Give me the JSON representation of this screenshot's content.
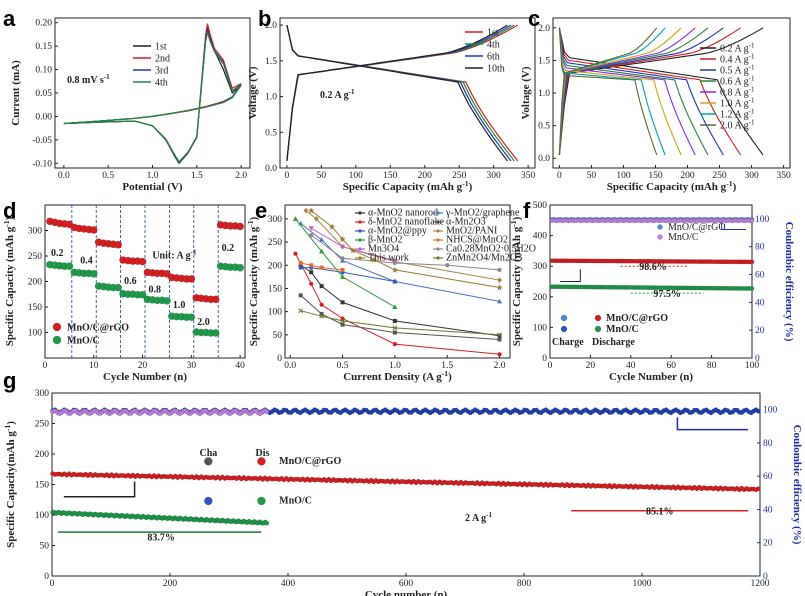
{
  "chart_data": [
    {
      "panel": "a",
      "type": "line",
      "xlabel": "Potential (V)",
      "ylabel": "Current (mA)",
      "xlim": [
        -0.1,
        2.1
      ],
      "ylim": [
        -0.11,
        0.21
      ],
      "xticks": [
        "0.0",
        "0.5",
        "1.0",
        "1.5",
        "2.0"
      ],
      "yticks": [
        "-0.10",
        "-0.05",
        "0.00",
        "0.05",
        "0.10",
        "0.15",
        "0.20"
      ],
      "annotation": "0.8 mV s-1",
      "series": [
        {
          "name": "1st",
          "color": "#222222",
          "x": [
            0.0,
            0.4,
            0.8,
            1.0,
            1.15,
            1.25,
            1.3,
            1.4,
            1.5,
            1.6,
            1.62,
            1.65,
            1.7,
            1.8,
            1.9,
            2.0,
            1.9,
            1.8,
            1.6,
            1.4,
            1.2,
            1.0,
            0.8,
            0.4,
            0.0
          ],
          "y": [
            -0.015,
            -0.012,
            -0.01,
            -0.02,
            -0.05,
            -0.085,
            -0.1,
            -0.078,
            -0.045,
            0.17,
            0.19,
            0.17,
            0.14,
            0.1,
            0.05,
            0.068,
            0.04,
            0.03,
            0.02,
            0.012,
            0.006,
            0.0,
            -0.004,
            -0.01,
            -0.015
          ]
        },
        {
          "name": "2nd",
          "color": "#d42020",
          "x": [
            0.0,
            0.4,
            0.8,
            1.0,
            1.15,
            1.25,
            1.3,
            1.4,
            1.5,
            1.6,
            1.62,
            1.65,
            1.7,
            1.8,
            1.9,
            2.0,
            1.9,
            1.8,
            1.6,
            1.4,
            1.2,
            1.0,
            0.8,
            0.4,
            0.0
          ],
          "y": [
            -0.015,
            -0.012,
            -0.01,
            -0.02,
            -0.048,
            -0.082,
            -0.097,
            -0.076,
            -0.043,
            0.175,
            0.198,
            0.175,
            0.145,
            0.12,
            0.06,
            0.07,
            0.042,
            0.032,
            0.021,
            0.013,
            0.006,
            0.0,
            -0.004,
            -0.01,
            -0.015
          ]
        },
        {
          "name": "3rd",
          "color": "#2233bb",
          "x": [
            0.0,
            0.4,
            0.8,
            1.0,
            1.15,
            1.25,
            1.3,
            1.4,
            1.5,
            1.6,
            1.62,
            1.65,
            1.7,
            1.8,
            1.9,
            2.0,
            1.9,
            1.8,
            1.6,
            1.4,
            1.2,
            1.0,
            0.8,
            0.4,
            0.0
          ],
          "y": [
            -0.015,
            -0.012,
            -0.01,
            -0.02,
            -0.05,
            -0.083,
            -0.098,
            -0.077,
            -0.044,
            0.165,
            0.185,
            0.165,
            0.14,
            0.115,
            0.055,
            0.068,
            0.041,
            0.031,
            0.02,
            0.012,
            0.006,
            0.0,
            -0.004,
            -0.01,
            -0.015
          ]
        },
        {
          "name": "4th",
          "color": "#1f8a3a",
          "x": [
            0.0,
            0.4,
            0.8,
            1.0,
            1.15,
            1.25,
            1.3,
            1.4,
            1.5,
            1.6,
            1.62,
            1.65,
            1.7,
            1.8,
            1.9,
            2.0,
            1.9,
            1.8,
            1.6,
            1.4,
            1.2,
            1.0,
            0.8,
            0.4,
            0.0
          ],
          "y": [
            -0.015,
            -0.012,
            -0.01,
            -0.02,
            -0.049,
            -0.082,
            -0.097,
            -0.076,
            -0.044,
            0.16,
            0.18,
            0.16,
            0.138,
            0.112,
            0.054,
            0.066,
            0.04,
            0.03,
            0.02,
            0.012,
            0.006,
            0.0,
            -0.004,
            -0.01,
            -0.015
          ]
        }
      ]
    },
    {
      "panel": "b",
      "type": "line",
      "xlabel": "Specific Capacity (mAh g-1)",
      "ylabel": "Voltage (V)",
      "xlim": [
        -10,
        360
      ],
      "ylim": [
        0.0,
        2.1
      ],
      "xticks": [
        "0",
        "50",
        "100",
        "150",
        "200",
        "250",
        "300",
        "350"
      ],
      "yticks": [
        "0.0",
        "0.5",
        "1.0",
        "1.5",
        "2.0"
      ],
      "annotation": "0.2 A g-1",
      "series": [
        {
          "name": "1st",
          "color": "#d42020",
          "cap": 335
        },
        {
          "name": "4th",
          "color": "#1f8a3a",
          "cap": 330
        },
        {
          "name": "6th",
          "color": "#2233bb",
          "cap": 325
        },
        {
          "name": "10th",
          "color": "#222222",
          "cap": 320
        }
      ]
    },
    {
      "panel": "c",
      "type": "line",
      "xlabel": "Specific Capacity (mAh g-1)",
      "ylabel": "Voltage (V)",
      "xlim": [
        -10,
        360
      ],
      "ylim": [
        -0.15,
        2.15
      ],
      "xticks": [
        "0",
        "50",
        "100",
        "150",
        "200",
        "250",
        "300",
        "350"
      ],
      "yticks": [
        "0.0",
        "0.5",
        "1.0",
        "1.5",
        "2.0"
      ],
      "series": [
        {
          "name": "0.2 A g-1",
          "color": "#222222",
          "cap": 318
        },
        {
          "name": "0.4 A g-1",
          "color": "#d42020",
          "cap": 283
        },
        {
          "name": "0.5 A g-1",
          "color": "#2233bb",
          "cap": 256
        },
        {
          "name": "0.6 A g-1",
          "color": "#1f8a3a",
          "cap": 232
        },
        {
          "name": "0.8 A g-1",
          "color": "#8a2be2",
          "cap": 212
        },
        {
          "name": "1.0 A g-1",
          "color": "#d4a017",
          "cap": 190
        },
        {
          "name": "1.2 A g-1",
          "color": "#00a0b0",
          "cap": 165
        },
        {
          "name": "2.0 A g-1",
          "color": "#556b2f",
          "cap": 152
        }
      ]
    },
    {
      "panel": "d",
      "type": "scatter",
      "xlabel": "Cycle Number (n)",
      "ylabel": "Specific Capacity (mAh g-1)",
      "xlim": [
        0,
        41
      ],
      "ylim": [
        50,
        350
      ],
      "xticks": [
        "0",
        "10",
        "20",
        "30",
        "40"
      ],
      "yticks": [
        "100",
        "150",
        "200",
        "250",
        "300"
      ],
      "annotation": "Unit: A g-1",
      "rate_labels": [
        "0.2",
        "0.4",
        "0.6",
        "0.8",
        "1.0",
        "2.0",
        "0.2"
      ],
      "series": [
        {
          "name": "MnO/C@rGO",
          "color": "#d42020",
          "values": [
            318,
            316,
            314,
            313,
            312,
            306,
            304,
            303,
            302,
            301,
            277,
            275,
            274,
            273,
            272,
            242,
            241,
            240,
            240,
            239,
            218,
            217,
            216,
            216,
            215,
            208,
            207,
            206,
            205,
            205,
            168,
            167,
            166,
            165,
            165,
            311,
            310,
            309,
            309,
            308
          ]
        },
        {
          "name": "MnO/C",
          "color": "#1f9a4a",
          "values": [
            233,
            232,
            231,
            230,
            230,
            218,
            217,
            216,
            216,
            215,
            191,
            190,
            189,
            188,
            188,
            176,
            175,
            175,
            174,
            174,
            165,
            164,
            163,
            163,
            162,
            132,
            131,
            131,
            130,
            130,
            101,
            100,
            100,
            99,
            99,
            230,
            229,
            228,
            228,
            227
          ]
        }
      ]
    },
    {
      "panel": "e",
      "type": "line",
      "xlabel": "Current Density (A g-1)",
      "ylabel": "Specific Capacity (mAh g-1)",
      "xlim": [
        -0.05,
        2.1
      ],
      "ylim": [
        0,
        330
      ],
      "xticks": [
        "0.0",
        "0.5",
        "1.0",
        "1.5",
        "2.0"
      ],
      "yticks": [
        "0",
        "50",
        "100",
        "150",
        "200",
        "250",
        "300"
      ],
      "series": [
        {
          "name": "α-MnO2 nanorod",
          "color": "#333333",
          "marker": "s",
          "x": [
            0.1,
            0.2,
            0.3,
            0.5,
            1.0,
            2.0
          ],
          "y": [
            200,
            185,
            155,
            120,
            80,
            48
          ]
        },
        {
          "name": "γ-MnO2/graphene",
          "color": "#4a76c0",
          "marker": "^",
          "x": [
            0.1,
            0.3,
            0.5,
            1.0,
            2.0
          ],
          "y": [
            290,
            255,
            210,
            165,
            122
          ]
        },
        {
          "name": "δ-MnO2 nanoflake",
          "color": "#d42020",
          "marker": "o",
          "x": [
            0.05,
            0.2,
            0.3,
            0.5,
            1.0,
            2.0
          ],
          "y": [
            225,
            160,
            115,
            85,
            30,
            8
          ]
        },
        {
          "name": "α-Mn2O3",
          "color": "#555555",
          "marker": "s",
          "x": [
            0.1,
            0.3,
            0.5,
            1.0,
            2.0
          ],
          "y": [
            135,
            95,
            72,
            55,
            40
          ]
        },
        {
          "name": "α-MnO2@ppy",
          "color": "#3355cc",
          "marker": "o",
          "x": [
            0.1,
            0.2,
            0.5,
            1.0
          ],
          "y": [
            195,
            195,
            185,
            165
          ]
        },
        {
          "name": "MnO2/PANI",
          "color": "#b08040",
          "marker": "d",
          "x": [
            0.15,
            0.25,
            0.5,
            1.0,
            2.0
          ],
          "y": [
            318,
            300,
            240,
            208,
            168
          ]
        },
        {
          "name": "β-MnO2",
          "color": "#2a9a3a",
          "marker": "^",
          "x": [
            0.05,
            0.3,
            0.5,
            1.0
          ],
          "y": [
            300,
            230,
            175,
            110
          ]
        },
        {
          "name": "NHCS@MnO2",
          "color": "#e07030",
          "marker": "s",
          "x": [
            0.1,
            0.2,
            0.3,
            0.5
          ],
          "y": [
            205,
            200,
            195,
            190
          ]
        },
        {
          "name": "Mn3O4",
          "color": "#c060c0",
          "marker": "v",
          "x": [
            0.2,
            0.5,
            1.0
          ],
          "y": [
            280,
            240,
            210
          ]
        },
        {
          "name": "Ca0.28MnO2·0.5H2O",
          "color": "#8a8a8a",
          "marker": "o",
          "x": [
            0.2,
            0.5,
            1.0,
            1.5,
            2.0
          ],
          "y": [
            265,
            215,
            205,
            200,
            190
          ]
        },
        {
          "name": "This work",
          "color": "#a07830",
          "marker": "*",
          "x": [
            0.2,
            0.4,
            0.5,
            0.6,
            0.8,
            1.0,
            2.0
          ],
          "y": [
            318,
            283,
            256,
            232,
            212,
            190,
            152
          ]
        },
        {
          "name": "ZnMn2O4/Mn2O3",
          "color": "#667733",
          "marker": "x",
          "x": [
            0.1,
            0.3,
            0.5,
            1.0,
            2.0
          ],
          "y": [
            102,
            90,
            80,
            65,
            50
          ]
        }
      ]
    },
    {
      "panel": "f",
      "type": "scatter",
      "xlabel": "Cycle Number (n)",
      "ylabel": "Specific Capacity (mAh g-1)",
      "y2label": "Coulombic efficiency (%)",
      "xlim": [
        0,
        100
      ],
      "ylim": [
        0,
        500
      ],
      "y2lim": [
        0,
        110
      ],
      "xticks": [
        "0",
        "20",
        "40",
        "60",
        "80",
        "100"
      ],
      "yticks": [
        "0",
        "100",
        "200",
        "300",
        "400",
        "500"
      ],
      "y2ticks": [
        "0",
        "20",
        "40",
        "60",
        "80",
        "100"
      ],
      "annotations": [
        "98.6%",
        "97.5%"
      ],
      "legend_labels": {
        "ce": [
          "MnO/C@rGO",
          "MnO/C"
        ],
        "charge": "Charge",
        "discharge": "Discharge",
        "cap": [
          "MnO/C@rGO",
          "MnO/C"
        ]
      },
      "series": [
        {
          "name": "MnO/C@rGO capacity",
          "color": "#d42020",
          "start": 318,
          "end": 314
        },
        {
          "name": "MnO/C capacity",
          "color": "#1f9a4a",
          "start": 233,
          "end": 227
        },
        {
          "name": "MnO/C@rGO CE",
          "color": "#4a8ad4",
          "value": 99.5
        },
        {
          "name": "MnO/C CE",
          "color": "#c080e0",
          "value": 98.8
        }
      ]
    },
    {
      "panel": "g",
      "type": "scatter",
      "xlabel": "Cycle number (n)",
      "ylabel": "Specific Capacity(mAh g-1)",
      "y2label": "Coulombic efficiency (%)",
      "xlim": [
        0,
        1200
      ],
      "ylim": [
        0,
        300
      ],
      "y2lim": [
        0,
        110
      ],
      "xticks": [
        "0",
        "200",
        "400",
        "600",
        "800",
        "1000",
        "1200"
      ],
      "yticks": [
        "0",
        "50",
        "100",
        "150",
        "200",
        "250",
        "300"
      ],
      "y2ticks": [
        "0",
        "20",
        "40",
        "60",
        "80",
        "100"
      ],
      "annotations": [
        "2 A g-1",
        "83.7%",
        "85.1%"
      ],
      "legend_labels": {
        "cha": "Cha",
        "dis": "Dis",
        "rgo": "MnO/C@rGO",
        "c": "MnO/C"
      },
      "series": [
        {
          "name": "MnO/C@rGO capacity",
          "color": "#d42020",
          "start": 167,
          "end": 142,
          "cycles": 1200
        },
        {
          "name": "MnO/C capacity",
          "color": "#1f9a4a",
          "start": 104,
          "end": 87,
          "cycles": 365
        },
        {
          "name": "MnO/C@rGO CE",
          "color": "#2040b0",
          "value": 99,
          "cycles": 1200
        },
        {
          "name": "MnO/C CE",
          "color": "#c080e0",
          "value": 98.5,
          "cycles": 365
        }
      ]
    }
  ]
}
